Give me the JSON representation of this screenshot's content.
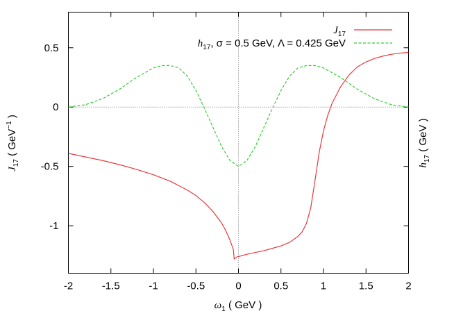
{
  "chart_data": {
    "type": "line",
    "xlabel": {
      "sym": "ω",
      "sub": "1",
      "unit": " ( GeV )"
    },
    "ylabel": {
      "sym": "J",
      "sub": "17",
      "unit_pre": " ( GeV",
      "unit_sup": "−1",
      "unit_post": " )"
    },
    "y2label": {
      "sym": "h",
      "sub": "17",
      "unit": " ( GeV )"
    },
    "xlim": [
      -2,
      2
    ],
    "ylim": [
      -1.4,
      0.8
    ],
    "x_ticks": [
      -2,
      -1.5,
      -1,
      -0.5,
      0,
      0.5,
      1,
      1.5,
      2
    ],
    "x_tick_labels": [
      "-2",
      "-1.5",
      "-1",
      "-0.5",
      "0",
      "0.5",
      "1",
      "1.5",
      "2"
    ],
    "y_ticks": [
      -1,
      -0.5,
      0,
      0.5
    ],
    "y_tick_labels": [
      "-1",
      "-0.5",
      "0",
      "0.5"
    ],
    "zero_lines": true,
    "legend_position": "top-right",
    "series": [
      {
        "name": "J17",
        "legend": {
          "sym": "J",
          "sub": "17"
        },
        "color": "#e8383b",
        "dash": "solid",
        "x": [
          -2.0,
          -1.8,
          -1.6,
          -1.4,
          -1.2,
          -1.0,
          -0.8,
          -0.6,
          -0.5,
          -0.4,
          -0.3,
          -0.2,
          -0.15,
          -0.1,
          -0.06,
          -0.05,
          -0.03,
          -0.01,
          0.0,
          0.05,
          0.1,
          0.2,
          0.3,
          0.4,
          0.5,
          0.6,
          0.7,
          0.75,
          0.8,
          0.85,
          0.9,
          0.95,
          1.0,
          1.05,
          1.1,
          1.15,
          1.2,
          1.3,
          1.4,
          1.5,
          1.6,
          1.7,
          1.8,
          1.9,
          2.0
        ],
        "y": [
          -0.39,
          -0.42,
          -0.45,
          -0.485,
          -0.525,
          -0.57,
          -0.625,
          -0.7,
          -0.745,
          -0.805,
          -0.88,
          -0.975,
          -1.04,
          -1.12,
          -1.2,
          -1.28,
          -1.27,
          -1.26,
          -1.26,
          -1.25,
          -1.24,
          -1.225,
          -1.21,
          -1.19,
          -1.17,
          -1.14,
          -1.09,
          -1.05,
          -0.98,
          -0.85,
          -0.62,
          -0.38,
          -0.2,
          -0.07,
          0.03,
          0.1,
          0.17,
          0.27,
          0.34,
          0.38,
          0.41,
          0.43,
          0.445,
          0.455,
          0.46
        ]
      },
      {
        "name": "h17",
        "legend": {
          "sym": "h",
          "sub": "17",
          "rest": ", σ = 0.5 GeV, Λ = 0.425 GeV"
        },
        "color": "#2ad32a",
        "dash": "dashed",
        "x": [
          -2.0,
          -1.8,
          -1.6,
          -1.4,
          -1.2,
          -1.0,
          -0.9,
          -0.8,
          -0.7,
          -0.6,
          -0.5,
          -0.4,
          -0.3,
          -0.2,
          -0.1,
          0.0,
          0.1,
          0.2,
          0.3,
          0.4,
          0.5,
          0.6,
          0.7,
          0.8,
          0.9,
          1.0,
          1.2,
          1.4,
          1.6,
          1.8,
          2.0
        ],
        "y": [
          0.0,
          0.02,
          0.07,
          0.15,
          0.25,
          0.33,
          0.35,
          0.35,
          0.33,
          0.26,
          0.14,
          -0.01,
          -0.17,
          -0.33,
          -0.45,
          -0.5,
          -0.45,
          -0.33,
          -0.17,
          -0.01,
          0.14,
          0.26,
          0.33,
          0.35,
          0.35,
          0.33,
          0.25,
          0.15,
          0.07,
          0.02,
          0.0
        ]
      }
    ]
  }
}
